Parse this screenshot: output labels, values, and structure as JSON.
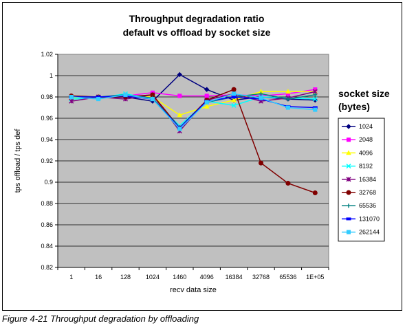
{
  "chart_data": {
    "type": "line",
    "title_lines": [
      "Throughput degradation ratio",
      "default vs offload by socket size"
    ],
    "xlabel": "recv data size",
    "ylabel": "tps offload / tps def",
    "ylim": [
      0.82,
      1.02
    ],
    "yticks": [
      "0.82",
      "0.84",
      "0.86",
      "0.88",
      "0.9",
      "0.92",
      "0.94",
      "0.96",
      "0.98",
      "1",
      "1.02"
    ],
    "categories": [
      "1",
      "16",
      "128",
      "1024",
      "1460",
      "4096",
      "16384",
      "32768",
      "65536",
      "1E+05"
    ],
    "grid": true,
    "legend": {
      "title_lines": [
        "socket size",
        "(bytes)"
      ],
      "placement": "right"
    },
    "series": [
      {
        "name": "1024",
        "color": "#000080",
        "marker": "diamond",
        "values": [
          0.98,
          0.979,
          0.98,
          0.976,
          1.001,
          0.987,
          0.977,
          0.98,
          0.978,
          0.977
        ]
      },
      {
        "name": "2048",
        "color": "#FF00FF",
        "marker": "square",
        "values": [
          0.98,
          0.98,
          0.981,
          0.984,
          0.981,
          0.981,
          0.982,
          0.981,
          0.983,
          0.987
        ]
      },
      {
        "name": "4096",
        "color": "#FFFF00",
        "marker": "triangle",
        "values": [
          0.979,
          0.979,
          0.981,
          0.98,
          0.963,
          0.971,
          0.977,
          0.985,
          0.985,
          0.985
        ]
      },
      {
        "name": "8192",
        "color": "#00FFFF",
        "marker": "x",
        "values": [
          0.978,
          0.979,
          0.983,
          0.978,
          0.953,
          0.976,
          0.972,
          0.98,
          0.979,
          0.978
        ]
      },
      {
        "name": "16384",
        "color": "#800080",
        "marker": "star",
        "values": [
          0.976,
          0.98,
          0.978,
          0.982,
          0.948,
          0.977,
          0.983,
          0.976,
          0.979,
          0.985
        ]
      },
      {
        "name": "32768",
        "color": "#800000",
        "marker": "circle",
        "values": [
          0.981,
          0.98,
          0.98,
          0.982,
          0.951,
          0.977,
          0.987,
          0.918,
          0.899,
          0.89
        ]
      },
      {
        "name": "65536",
        "color": "#008080",
        "marker": "plus",
        "values": [
          0.98,
          0.98,
          0.982,
          0.979,
          0.951,
          0.975,
          0.98,
          0.983,
          0.978,
          0.982
        ]
      },
      {
        "name": "131070",
        "color": "#0000FF",
        "marker": "dash",
        "values": [
          0.98,
          0.98,
          0.981,
          0.978,
          0.951,
          0.976,
          0.98,
          0.978,
          0.971,
          0.97
        ]
      },
      {
        "name": "262144",
        "color": "#33CCFF",
        "marker": "square",
        "values": [
          0.98,
          0.978,
          0.982,
          0.978,
          0.95,
          0.975,
          0.983,
          0.979,
          0.97,
          0.968
        ]
      }
    ]
  },
  "caption": "Figure 4-21   Throughput degradation by offloading"
}
